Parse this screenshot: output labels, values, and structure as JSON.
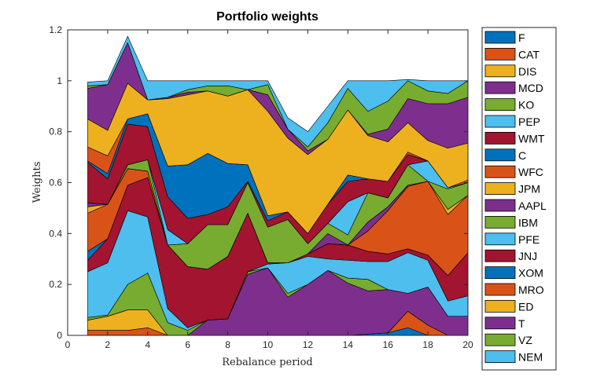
{
  "chart_data": {
    "type": "area",
    "stacked": true,
    "title": "Portfolio weights",
    "xlabel": "Rebalance period",
    "ylabel": "Weights",
    "xlim": [
      0,
      20
    ],
    "ylim": [
      0,
      1.2
    ],
    "xticks": [
      "0",
      "2",
      "4",
      "6",
      "8",
      "10",
      "12",
      "14",
      "16",
      "18",
      "20"
    ],
    "yticks": [
      "0",
      "0.2",
      "0.4",
      "0.6",
      "0.8",
      "1",
      "1.2"
    ],
    "legend_position": "outside-right",
    "x": [
      1,
      2,
      3,
      4,
      5,
      6,
      7,
      8,
      9,
      10,
      11,
      12,
      13,
      14,
      15,
      16,
      17,
      18,
      19,
      20
    ],
    "series": [
      {
        "name": "F",
        "color": "#0072BD",
        "values": [
          0,
          0,
          0,
          0,
          0,
          0,
          0,
          0,
          0,
          0,
          0,
          0,
          0,
          0,
          0.005,
          0.01,
          0.03,
          0,
          0,
          0
        ]
      },
      {
        "name": "CAT",
        "color": "#D95319",
        "values": [
          0.02,
          0.02,
          0.02,
          0.03,
          0,
          0,
          0,
          0,
          0,
          0,
          0,
          0,
          0,
          0,
          0,
          0,
          0.065,
          0.04,
          0,
          0
        ]
      },
      {
        "name": "DIS",
        "color": "#EDB120",
        "values": [
          0.04,
          0.055,
          0.08,
          0.07,
          0,
          0,
          0,
          0,
          0,
          0,
          0,
          0,
          0,
          0,
          0,
          0,
          0,
          0,
          0,
          0
        ]
      },
      {
        "name": "MCD",
        "color": "#7E2F8E",
        "values": [
          0,
          0,
          0,
          0,
          0,
          0,
          0.06,
          0.065,
          0.24,
          0.265,
          0.15,
          0.2,
          0.255,
          0.205,
          0.17,
          0.17,
          0.07,
          0.15,
          0.075,
          0.075
        ]
      },
      {
        "name": "KO",
        "color": "#77AC30",
        "values": [
          0.01,
          0.005,
          0.1,
          0.145,
          0.05,
          0.02,
          0,
          0,
          0.01,
          0,
          0.015,
          0,
          0,
          0.02,
          0.045,
          0,
          0,
          0,
          0,
          0
        ]
      },
      {
        "name": "PEP",
        "color": "#4DBEEE",
        "values": [
          0.18,
          0.205,
          0.29,
          0.22,
          0.055,
          0.01,
          0,
          0,
          0,
          0.015,
          0.12,
          0.11,
          0.045,
          0.07,
          0.07,
          0.11,
          0.16,
          0.105,
          0.06,
          0.08
        ]
      },
      {
        "name": "WMT",
        "color": "#A2142F",
        "values": [
          0.045,
          0.095,
          0.1,
          0.155,
          0.25,
          0.24,
          0.2,
          0.245,
          0.23,
          0.005,
          0,
          0.01,
          0.06,
          0.06,
          0.04,
          0.03,
          0.015,
          0.02,
          0.1,
          0.17
        ]
      },
      {
        "name": "C",
        "color": "#0072BD",
        "values": [
          0.035,
          0,
          0,
          0,
          0,
          0,
          0,
          0,
          0,
          0,
          0,
          0,
          0,
          0,
          0,
          0,
          0,
          0,
          0,
          0
        ]
      },
      {
        "name": "WFC",
        "color": "#D95319",
        "values": [
          0.15,
          0.135,
          0.065,
          0.025,
          0,
          0,
          0,
          0,
          0,
          0,
          0,
          0,
          0,
          0,
          0.08,
          0.17,
          0.245,
          0.29,
          0.24,
          0.225
        ]
      },
      {
        "name": "JPM",
        "color": "#EDB120",
        "values": [
          0.025,
          0,
          0,
          0,
          0,
          0,
          0,
          0,
          0,
          0,
          0,
          0,
          0,
          0,
          0,
          0,
          0,
          0,
          0.02,
          0
        ]
      },
      {
        "name": "AAPL",
        "color": "#7E2F8E",
        "values": [
          0.015,
          0,
          0,
          0,
          0,
          0,
          0,
          0,
          0,
          0,
          0,
          0,
          0.04,
          0,
          0.035,
          0.015,
          0.005,
          0,
          0,
          0
        ]
      },
      {
        "name": "IBM",
        "color": "#77AC30",
        "values": [
          0,
          0,
          0.015,
          0.045,
          0,
          0.09,
          0.175,
          0.125,
          0.12,
          0.14,
          0.17,
          0.04,
          0.04,
          0.04,
          0.115,
          0.035,
          0.08,
          0,
          0.08,
          0.05
        ]
      },
      {
        "name": "PFE",
        "color": "#4DBEEE",
        "values": [
          0,
          0,
          0,
          0,
          0.06,
          0,
          0,
          0,
          0,
          0,
          0,
          0,
          0,
          0.13,
          0,
          0,
          0,
          0.08,
          0.005,
          0
        ]
      },
      {
        "name": "JNJ",
        "color": "#A2142F",
        "values": [
          0.16,
          0.1,
          0.16,
          0.13,
          0.13,
          0.1,
          0.04,
          0.07,
          0.005,
          0.025,
          0.03,
          0.04,
          0.075,
          0.08,
          0.055,
          0.065,
          0.04,
          0,
          0,
          0
        ]
      },
      {
        "name": "XOM",
        "color": "#0072BD",
        "values": [
          0.005,
          0.02,
          0.02,
          0.05,
          0.12,
          0.21,
          0.24,
          0.17,
          0.065,
          0.02,
          0,
          0,
          0,
          0.025,
          0,
          0,
          0,
          0,
          0,
          0
        ]
      },
      {
        "name": "MRO",
        "color": "#D95319",
        "values": [
          0.055,
          0.07,
          0,
          0,
          0,
          0,
          0,
          0,
          0,
          0,
          0,
          0,
          0,
          0,
          0,
          0,
          0.01,
          0,
          0,
          0.01
        ]
      },
      {
        "name": "ED",
        "color": "#EDB120",
        "values": [
          0.11,
          0.1,
          0.14,
          0.055,
          0.265,
          0.275,
          0.245,
          0.265,
          0.295,
          0.41,
          0.29,
          0.31,
          0.255,
          0.255,
          0.17,
          0.155,
          0.115,
          0.08,
          0.155,
          0.145
        ]
      },
      {
        "name": "T",
        "color": "#7E2F8E",
        "values": [
          0.12,
          0.18,
          0.16,
          0,
          0.005,
          0.01,
          0,
          0,
          0,
          0.065,
          0.035,
          0.015,
          0,
          0,
          0.005,
          0.05,
          0.095,
          0.145,
          0.175,
          0.18
        ]
      },
      {
        "name": "VZ",
        "color": "#77AC30",
        "values": [
          0.01,
          0,
          0,
          0,
          0,
          0.01,
          0.02,
          0.04,
          0,
          0.04,
          0,
          0.015,
          0.065,
          0.085,
          0.09,
          0.11,
          0.07,
          0.05,
          0.04,
          0.065
        ]
      },
      {
        "name": "NEM",
        "color": "#4DBEEE",
        "values": [
          0.015,
          0.015,
          0.025,
          0.075,
          0.065,
          0.035,
          0.02,
          0.02,
          0.035,
          0.015,
          0.045,
          0.06,
          0.065,
          0.03,
          0.12,
          0.08,
          0.005,
          0.04,
          0.05,
          0
        ]
      }
    ]
  }
}
